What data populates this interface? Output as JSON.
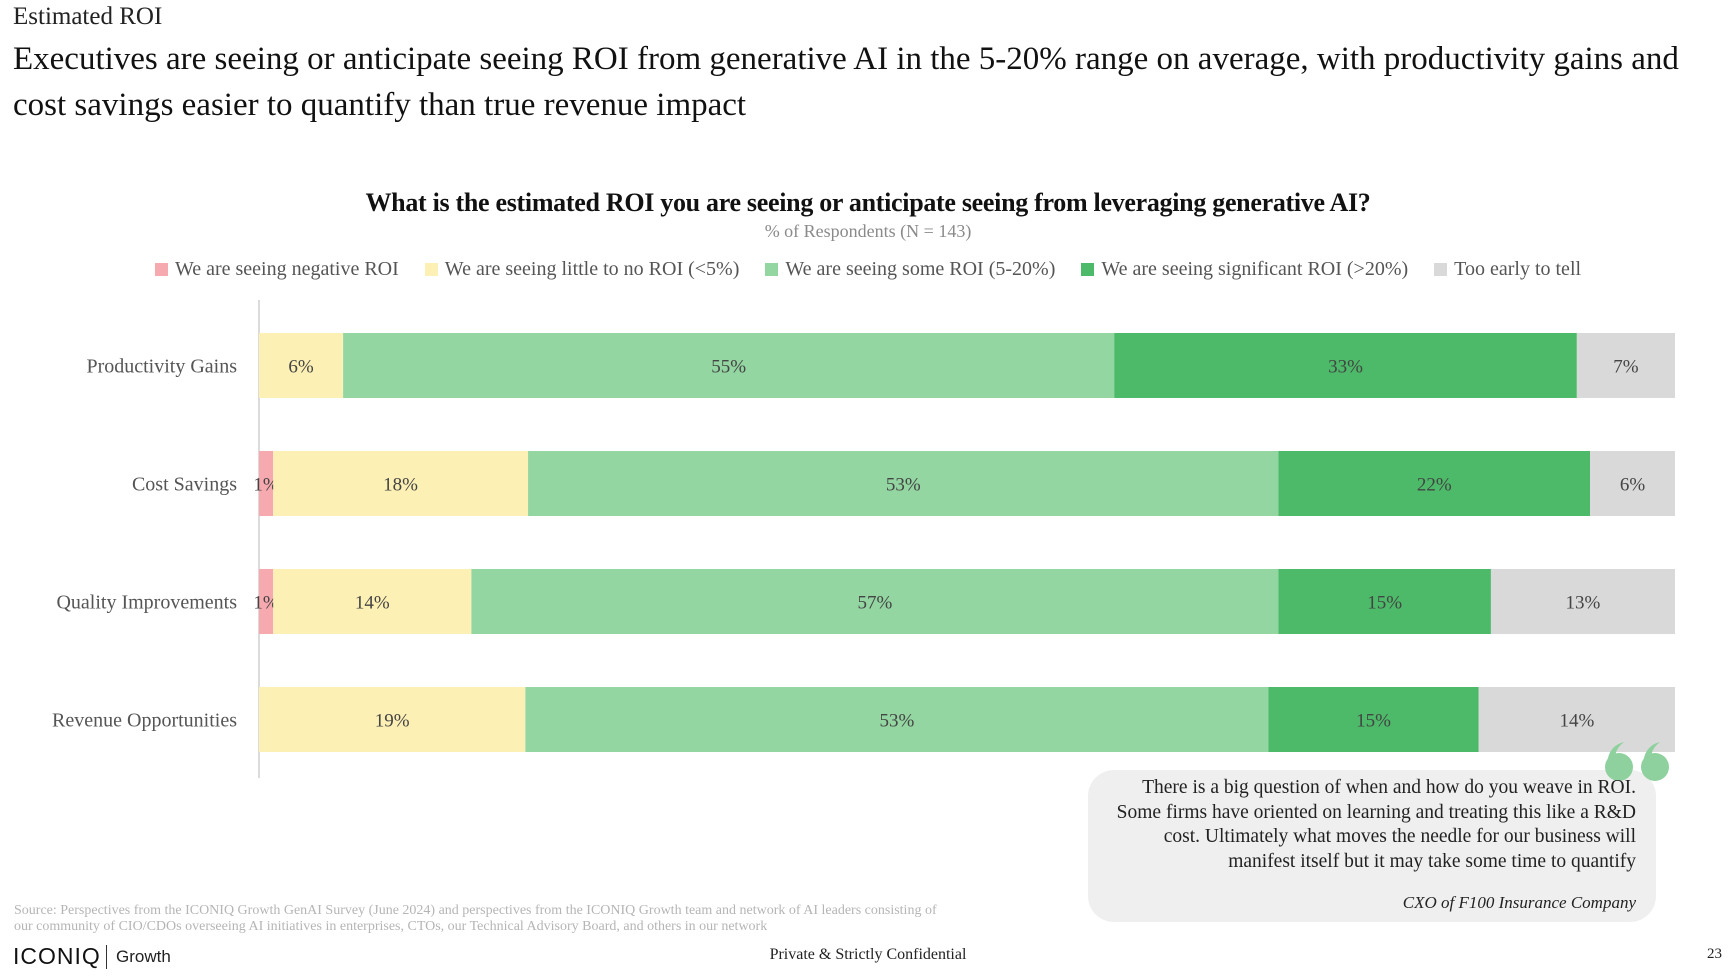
{
  "header": {
    "section_label": "Estimated ROI",
    "headline": "Executives are seeing or anticipate seeing ROI from generative AI in the 5-20% range on average, with productivity gains and cost savings easier to quantify than true revenue impact"
  },
  "chart_data": {
    "type": "bar",
    "orientation": "horizontal",
    "stacked": true,
    "title": "What is the estimated ROI you are seeing or anticipate seeing from leveraging generative AI?",
    "subtitle": "% of Respondents (N = 143)",
    "xlabel": "",
    "ylabel": "",
    "xlim": [
      0,
      100
    ],
    "legend_position": "top",
    "categories": [
      "Productivity Gains",
      "Cost Savings",
      "Quality Improvements",
      "Revenue Opportunities"
    ],
    "series": [
      {
        "name": "We are seeing negative ROI",
        "color": "#f6a9ae",
        "values": [
          0,
          1,
          1,
          0
        ]
      },
      {
        "name": "We are seeing little to no ROI (<5%)",
        "color": "#fdf0b5",
        "values": [
          6,
          18,
          14,
          19
        ]
      },
      {
        "name": "We are seeing some ROI (5-20%)",
        "color": "#93d6a1",
        "values": [
          55,
          53,
          57,
          53
        ]
      },
      {
        "name": "We are seeing significant ROI (>20%)",
        "color": "#4cba68",
        "values": [
          33,
          22,
          15,
          15
        ]
      },
      {
        "name": "Too early to tell",
        "color": "#d9d9d9",
        "values": [
          7,
          6,
          13,
          14
        ]
      }
    ]
  },
  "quote": {
    "text": "There is a big question of when and how do you weave in ROI. Some firms have oriented on learning and treating this like a R&D cost. Ultimately what moves the needle for our business will manifest itself but it may take some time to quantify",
    "attribution": "CXO of F100 Insurance Company",
    "quote_icon": "quote-marks-icon",
    "quote_color": "#8fd19e"
  },
  "footer": {
    "source": "Source: Perspectives from the ICONIQ Growth GenAI Survey (June 2024) and perspectives from the ICONIQ Growth team and network of AI leaders consisting of our community of CIO/CDOs overseeing AI initiatives in enterprises, CTOs, our Technical Advisory Board, and others in our network",
    "logo_text": "ICONIQ",
    "logo_sub": "Growth",
    "confidential": "Private & Strictly Confidential",
    "page_number": "23"
  }
}
